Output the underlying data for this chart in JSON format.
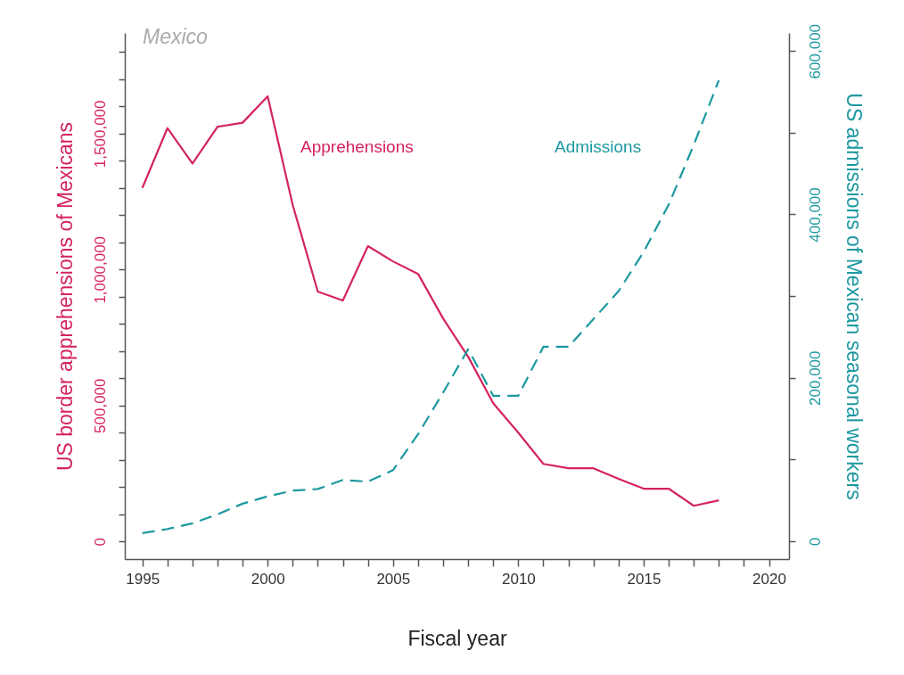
{
  "chart_data": {
    "type": "line",
    "title": "Mexico",
    "xlabel": "Fiscal year",
    "ylabel": "US border apprehensions of Mexicans",
    "y2label": "US admissions of Mexican seasonal workers",
    "x": [
      1995,
      1996,
      1997,
      1998,
      1999,
      2000,
      2001,
      2002,
      2003,
      2004,
      2005,
      2006,
      2007,
      2008,
      2009,
      2010,
      2011,
      2012,
      2013,
      2014,
      2015,
      2016,
      2017,
      2018
    ],
    "series": [
      {
        "name": "Apprehensions",
        "color": "#d4245b",
        "line_style": "solid",
        "values": [
          1300000,
          1520000,
          1390000,
          1525000,
          1540000,
          1637000,
          1237000,
          919000,
          886000,
          1086000,
          1030000,
          984000,
          820000,
          679000,
          508000,
          400000,
          285000,
          269000,
          269000,
          230000,
          194000,
          194000,
          131000,
          151000
        ]
      },
      {
        "name": "Admissions",
        "color": "#1c98a0",
        "line_style": "dashed",
        "axis": "y2",
        "values": [
          10000,
          15000,
          22000,
          33000,
          46000,
          55000,
          62000,
          64000,
          75000,
          73000,
          87000,
          131000,
          182000,
          235000,
          178000,
          178000,
          238000,
          238000,
          272000,
          306000,
          354000,
          412000,
          485000,
          564000
        ]
      }
    ],
    "xlim": [
      1994.3,
      2020.8
    ],
    "xticks": [
      1995,
      {
        "value": 1996,
        "label": null
      },
      {
        "value": 1997,
        "label": null
      },
      {
        "value": 1998,
        "label": null
      },
      {
        "value": 1999,
        "label": null
      },
      2000,
      {
        "value": 2001,
        "label": null
      },
      {
        "value": 2002,
        "label": null
      },
      {
        "value": 2003,
        "label": null
      },
      {
        "value": 2004,
        "label": null
      },
      2005,
      {
        "value": 2006,
        "label": null
      },
      {
        "value": 2007,
        "label": null
      },
      {
        "value": 2008,
        "label": null
      },
      {
        "value": 2009,
        "label": null
      },
      2010,
      {
        "value": 2011,
        "label": null
      },
      {
        "value": 2012,
        "label": null
      },
      {
        "value": 2013,
        "label": null
      },
      {
        "value": 2014,
        "label": null
      },
      2015,
      {
        "value": 2016,
        "label": null
      },
      {
        "value": 2017,
        "label": null
      },
      {
        "value": 2018,
        "label": null
      },
      {
        "value": 2019,
        "label": null
      },
      2020
    ],
    "ylim": [
      -65000,
      1870000
    ],
    "yticks": [
      {
        "value": 0,
        "label": "0"
      },
      {
        "value": 100000,
        "label": null
      },
      {
        "value": 200000,
        "label": null
      },
      {
        "value": 300000,
        "label": null
      },
      {
        "value": 400000,
        "label": null
      },
      {
        "value": 500000,
        "label": "500,000"
      },
      {
        "value": 600000,
        "label": null
      },
      {
        "value": 700000,
        "label": null
      },
      {
        "value": 800000,
        "label": null
      },
      {
        "value": 900000,
        "label": null
      },
      {
        "value": 1000000,
        "label": "1,000,000"
      },
      {
        "value": 1100000,
        "label": null
      },
      {
        "value": 1200000,
        "label": null
      },
      {
        "value": 1300000,
        "label": null
      },
      {
        "value": 1400000,
        "label": null
      },
      {
        "value": 1500000,
        "label": "1,500,000"
      },
      {
        "value": 1600000,
        "label": null
      },
      {
        "value": 1700000,
        "label": null
      },
      {
        "value": 1800000,
        "label": null
      }
    ],
    "y2lim": [
      -21800,
      622000
    ],
    "y2ticks": [
      {
        "value": 0,
        "label": "0"
      },
      {
        "value": 100000,
        "label": null
      },
      {
        "value": 200000,
        "label": "200,000"
      },
      {
        "value": 300000,
        "label": null
      },
      {
        "value": 400000,
        "label": "400,000"
      },
      {
        "value": 500000,
        "label": null
      },
      {
        "value": 600000,
        "label": "600,000"
      }
    ],
    "grid": false
  }
}
